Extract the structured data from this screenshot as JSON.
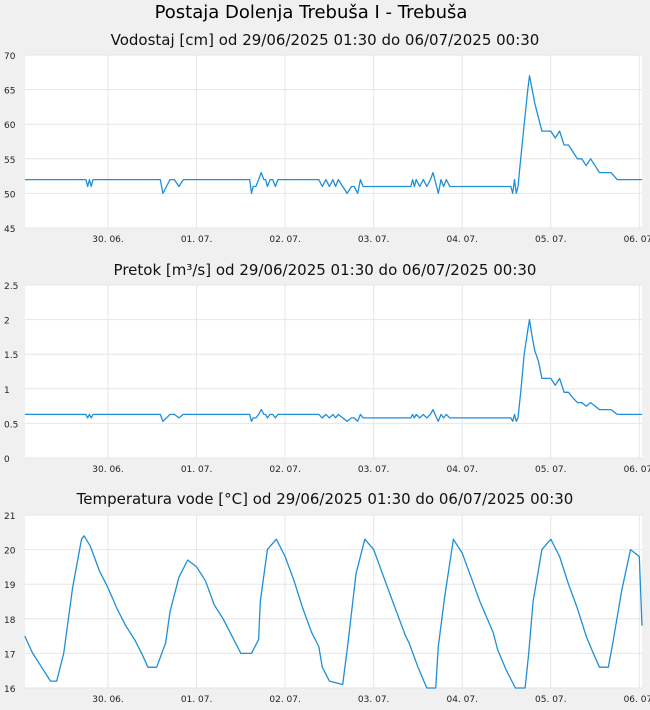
{
  "page": {
    "title": "Postaja Dolenja Trebuša I - Trebuša"
  },
  "chart_data": [
    {
      "type": "line",
      "title": "Vodostaj [cm] od 29/06/2025 01:30 do 06/07/2025 00:30",
      "xlabel": "",
      "ylabel": "",
      "xlim": [
        1.0625,
        8.03
      ],
      "ylim": [
        45,
        70
      ],
      "yticks": [
        45,
        50,
        55,
        60,
        65,
        70
      ],
      "x_tick_labels": [
        "30. 06.",
        "01. 07.",
        "02. 07.",
        "03. 07.",
        "04. 07.",
        "05. 07.",
        "06. 07."
      ],
      "grid": true,
      "color": "#1f8fd8",
      "series": [
        {
          "x": [
            1.06,
            1.75,
            1.77,
            1.79,
            1.81,
            1.83,
            2.59,
            2.62,
            2.66,
            2.7,
            2.75,
            2.8,
            2.85,
            2.88,
            2.92,
            2.95,
            3.6,
            3.62,
            3.64,
            3.67,
            3.7,
            3.73,
            3.76,
            3.78,
            3.8,
            3.83,
            3.86,
            3.89,
            3.92,
            3.96,
            4.0,
            4.05,
            4.1,
            4.15,
            4.3,
            4.38,
            4.42,
            4.46,
            4.5,
            4.54,
            4.57,
            4.6,
            4.65,
            4.7,
            4.75,
            4.78,
            4.82,
            4.85,
            4.88,
            4.91,
            4.94,
            4.98,
            5.02,
            5.06,
            5.1,
            5.14,
            5.2,
            5.3,
            5.42,
            5.44,
            5.46,
            5.48,
            5.52,
            5.56,
            5.6,
            5.64,
            5.67,
            5.71,
            5.73,
            5.76,
            5.79,
            5.82,
            5.86,
            5.9,
            6.0,
            6.1,
            6.2,
            6.3,
            6.55,
            6.57,
            6.59,
            6.61,
            6.63,
            6.66,
            6.7,
            6.74,
            6.76,
            6.79,
            6.82,
            6.86,
            6.9,
            6.95,
            7.0,
            7.05,
            7.1,
            7.15,
            7.2,
            7.25,
            7.3,
            7.35,
            7.4,
            7.45,
            7.5,
            7.55,
            7.6,
            7.68,
            7.75,
            7.85,
            8.03
          ],
          "y": [
            52,
            52,
            51,
            52,
            51,
            52,
            52,
            50,
            51,
            52,
            52,
            51,
            52,
            52,
            52,
            52,
            52,
            50,
            51,
            51,
            52,
            53,
            52,
            52,
            51,
            52,
            52,
            51,
            52,
            52,
            52,
            52,
            52,
            52,
            52,
            52,
            51,
            52,
            51,
            52,
            51,
            52,
            51,
            50,
            51,
            51,
            50,
            52,
            51,
            51,
            51,
            51,
            51,
            51,
            51,
            51,
            51,
            51,
            51,
            52,
            51,
            52,
            51,
            52,
            51,
            52,
            53,
            51,
            50,
            52,
            51,
            52,
            51,
            51,
            51,
            51,
            51,
            51,
            51,
            50,
            52,
            50,
            51,
            55,
            60,
            65,
            67,
            65,
            63,
            61,
            59,
            59,
            59,
            58,
            59,
            57,
            57,
            56,
            55,
            55,
            54,
            55,
            54,
            53,
            53,
            53,
            52,
            52,
            52
          ]
        }
      ]
    },
    {
      "type": "line",
      "title": "Pretok [m³/s] od 29/06/2025 01:30 do 06/07/2025 00:30",
      "xlabel": "",
      "ylabel": "",
      "xlim": [
        1.0625,
        8.03
      ],
      "ylim": [
        0,
        2.5
      ],
      "yticks": [
        0,
        0.5,
        1,
        1.5,
        2,
        2.5
      ],
      "x_tick_labels": [
        "30. 06.",
        "01. 07.",
        "02. 07.",
        "03. 07.",
        "04. 07.",
        "05. 07.",
        "06. 07."
      ],
      "grid": true,
      "color": "#1f8fd8",
      "series": [
        {
          "x": [
            1.06,
            1.75,
            1.77,
            1.79,
            1.81,
            1.83,
            2.59,
            2.62,
            2.66,
            2.7,
            2.75,
            2.8,
            2.85,
            2.88,
            2.92,
            2.95,
            3.6,
            3.62,
            3.64,
            3.67,
            3.7,
            3.73,
            3.76,
            3.78,
            3.8,
            3.83,
            3.86,
            3.89,
            3.92,
            3.96,
            4.0,
            4.05,
            4.1,
            4.15,
            4.3,
            4.38,
            4.42,
            4.46,
            4.5,
            4.54,
            4.57,
            4.6,
            4.65,
            4.7,
            4.75,
            4.78,
            4.82,
            4.85,
            4.88,
            4.91,
            4.94,
            4.98,
            5.02,
            5.06,
            5.1,
            5.14,
            5.2,
            5.3,
            5.42,
            5.44,
            5.46,
            5.48,
            5.52,
            5.56,
            5.6,
            5.64,
            5.67,
            5.71,
            5.73,
            5.76,
            5.79,
            5.82,
            5.86,
            5.9,
            6.0,
            6.1,
            6.2,
            6.3,
            6.55,
            6.57,
            6.59,
            6.61,
            6.63,
            6.66,
            6.7,
            6.74,
            6.76,
            6.79,
            6.82,
            6.86,
            6.9,
            6.95,
            7.0,
            7.05,
            7.1,
            7.15,
            7.2,
            7.25,
            7.3,
            7.35,
            7.4,
            7.45,
            7.5,
            7.55,
            7.6,
            7.68,
            7.75,
            7.85,
            8.03
          ],
          "y": [
            0.63,
            0.63,
            0.58,
            0.63,
            0.58,
            0.63,
            0.63,
            0.53,
            0.58,
            0.63,
            0.63,
            0.58,
            0.63,
            0.63,
            0.63,
            0.63,
            0.63,
            0.53,
            0.58,
            0.58,
            0.63,
            0.7,
            0.63,
            0.63,
            0.58,
            0.63,
            0.63,
            0.58,
            0.63,
            0.63,
            0.63,
            0.63,
            0.63,
            0.63,
            0.63,
            0.63,
            0.58,
            0.63,
            0.58,
            0.63,
            0.58,
            0.63,
            0.58,
            0.53,
            0.58,
            0.58,
            0.53,
            0.63,
            0.58,
            0.58,
            0.58,
            0.58,
            0.58,
            0.58,
            0.58,
            0.58,
            0.58,
            0.58,
            0.58,
            0.63,
            0.58,
            0.63,
            0.58,
            0.63,
            0.58,
            0.63,
            0.7,
            0.58,
            0.53,
            0.63,
            0.58,
            0.63,
            0.58,
            0.58,
            0.58,
            0.58,
            0.58,
            0.58,
            0.58,
            0.53,
            0.63,
            0.53,
            0.58,
            0.95,
            1.5,
            1.85,
            2.0,
            1.75,
            1.55,
            1.4,
            1.15,
            1.15,
            1.15,
            1.05,
            1.15,
            0.95,
            0.95,
            0.87,
            0.8,
            0.8,
            0.75,
            0.8,
            0.75,
            0.7,
            0.7,
            0.7,
            0.63,
            0.63,
            0.63
          ]
        }
      ]
    },
    {
      "type": "line",
      "title": "Temperatura vode [°C] od 29/06/2025 01:30 do 06/07/2025 00:30",
      "xlabel": "",
      "ylabel": "",
      "xlim": [
        1.0625,
        8.03
      ],
      "ylim": [
        16,
        21
      ],
      "yticks": [
        16,
        17,
        18,
        19,
        20,
        21
      ],
      "x_tick_labels": [
        "30. 06.",
        "01. 07.",
        "02. 07.",
        "03. 07.",
        "04. 07.",
        "05. 07.",
        "06. 07."
      ],
      "grid": true,
      "color": "#1f8fd8",
      "series": [
        {
          "x": [
            1.06,
            1.15,
            1.25,
            1.35,
            1.42,
            1.5,
            1.6,
            1.7,
            1.73,
            1.8,
            1.9,
            2.0,
            2.1,
            2.2,
            2.3,
            2.38,
            2.45,
            2.55,
            2.65,
            2.7,
            2.8,
            2.9,
            3.0,
            3.1,
            3.2,
            3.3,
            3.4,
            3.5,
            3.62,
            3.7,
            3.72,
            3.8,
            3.9,
            4.0,
            4.1,
            4.2,
            4.3,
            4.38,
            4.42,
            4.5,
            4.65,
            4.71,
            4.8,
            4.9,
            5.0,
            5.1,
            5.2,
            5.36,
            5.4,
            5.5,
            5.6,
            5.7,
            5.73,
            5.8,
            5.9,
            6.0,
            6.1,
            6.2,
            6.35,
            6.4,
            6.5,
            6.6,
            6.71,
            6.75,
            6.8,
            6.9,
            7.0,
            7.1,
            7.2,
            7.3,
            7.4,
            7.48,
            7.55,
            7.65,
            7.7,
            7.8,
            7.9,
            8.0,
            8.03
          ],
          "y": [
            17.5,
            17.0,
            16.6,
            16.2,
            16.2,
            17.0,
            18.9,
            20.3,
            20.4,
            20.1,
            19.4,
            18.9,
            18.3,
            17.8,
            17.4,
            17.0,
            16.6,
            16.6,
            17.3,
            18.2,
            19.2,
            19.7,
            19.5,
            19.1,
            18.4,
            18.0,
            17.5,
            17.0,
            17.0,
            17.4,
            18.5,
            20.0,
            20.3,
            19.8,
            19.1,
            18.3,
            17.6,
            17.2,
            16.6,
            16.2,
            16.1,
            17.3,
            19.3,
            20.3,
            20.0,
            19.3,
            18.6,
            17.5,
            17.3,
            16.6,
            16.0,
            16.0,
            17.2,
            18.6,
            20.3,
            19.9,
            19.2,
            18.5,
            17.6,
            17.1,
            16.5,
            16.0,
            16.0,
            17.0,
            18.5,
            20.0,
            20.3,
            19.8,
            19.0,
            18.3,
            17.5,
            17.0,
            16.6,
            16.6,
            17.3,
            18.8,
            20.0,
            19.8,
            17.8
          ]
        }
      ]
    }
  ]
}
